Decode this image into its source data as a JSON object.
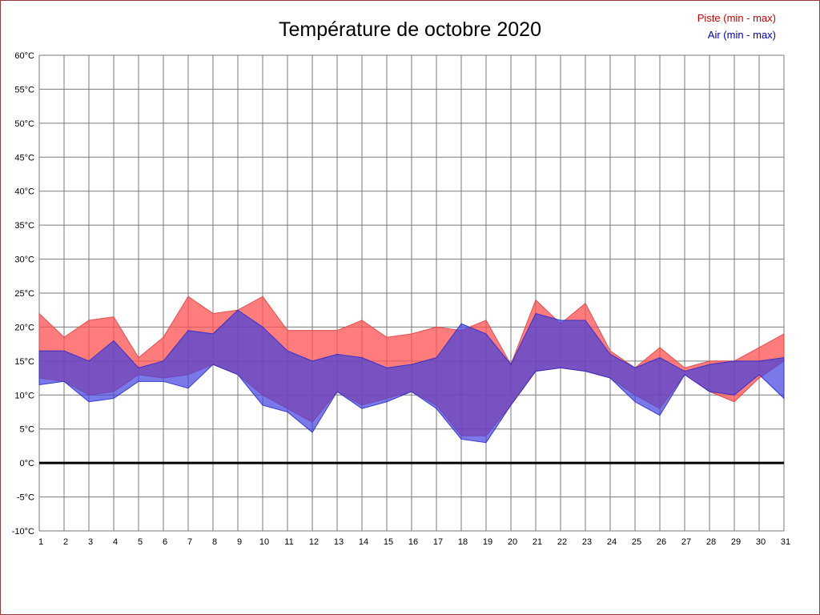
{
  "chart_data": {
    "type": "area",
    "title": "Température de octobre 2020",
    "xlabel": "",
    "ylabel": "",
    "xlim": [
      1,
      31
    ],
    "ylim": [
      -10,
      60
    ],
    "grid": true,
    "legend_position": "top-right",
    "zero_line_value": 0,
    "colors": {
      "grid": "#7a7a7a",
      "zero_line": "#000000",
      "axis_text": "#000000"
    },
    "x": [
      1,
      2,
      3,
      4,
      5,
      6,
      7,
      8,
      9,
      10,
      11,
      12,
      13,
      14,
      15,
      16,
      17,
      18,
      19,
      20,
      21,
      22,
      23,
      24,
      25,
      26,
      27,
      28,
      29,
      30,
      31
    ],
    "x_ticks": [
      "1",
      "2",
      "3",
      "4",
      "5",
      "6",
      "7",
      "8",
      "9",
      "10",
      "11",
      "12",
      "13",
      "14",
      "15",
      "16",
      "17",
      "18",
      "19",
      "20",
      "21",
      "22",
      "23",
      "24",
      "25",
      "26",
      "27",
      "28",
      "29",
      "30",
      "31"
    ],
    "y_ticks": [
      "60°C",
      "55°C",
      "50°C",
      "45°C",
      "40°C",
      "35°C",
      "30°C",
      "25°C",
      "20°C",
      "15°C",
      "10°C",
      "5°C",
      "0°C",
      "-5°C",
      "-10°C"
    ],
    "series": [
      {
        "id": "piste",
        "name": "Piste (min - max)",
        "legend_color": "#cc0000",
        "fill": "#ff5050",
        "fill_opacity": 0.75,
        "stroke": "#e04040",
        "max": [
          22,
          18.5,
          21,
          21.5,
          15.5,
          18.5,
          24.5,
          22,
          22.5,
          24.5,
          19.5,
          19.5,
          19.5,
          21,
          18.5,
          19,
          20,
          19.5,
          21,
          14.5,
          24,
          20.5,
          23.5,
          16.5,
          14,
          17,
          14,
          15,
          15,
          17,
          19
        ],
        "min": [
          12.5,
          12,
          10,
          10.5,
          13,
          12.5,
          13,
          14.5,
          13,
          10,
          8,
          6,
          10.5,
          8.5,
          9.5,
          10.5,
          8.5,
          4,
          4,
          8.5,
          13.5,
          14,
          13.5,
          12.5,
          10,
          8,
          13,
          10.5,
          9,
          12.5,
          15
        ]
      },
      {
        "id": "air",
        "name": "Air (min - max)",
        "legend_color": "#0000cc",
        "fill": "#4040e0",
        "fill_opacity": 0.7,
        "stroke": "#2828c8",
        "max": [
          16.5,
          16.5,
          15,
          18,
          14,
          15,
          19.5,
          19,
          22.5,
          20,
          16.5,
          15,
          16,
          15.5,
          14,
          14.5,
          15.5,
          20.5,
          19,
          14.5,
          22,
          21,
          21,
          16,
          14,
          15.5,
          13.5,
          14.5,
          15,
          15,
          15.5
        ],
        "min": [
          11.5,
          12,
          9,
          9.5,
          12,
          12,
          11,
          14.5,
          13,
          8.5,
          7.5,
          4.5,
          10.5,
          8,
          9,
          10.5,
          8,
          3.5,
          3,
          8.5,
          13.5,
          14,
          13.5,
          12.5,
          9,
          7,
          13,
          10.5,
          10,
          13,
          9.5
        ]
      }
    ]
  }
}
